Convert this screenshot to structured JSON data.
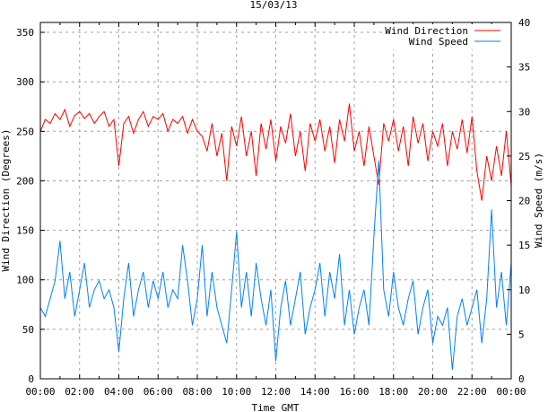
{
  "chart_data": {
    "type": "line",
    "title": "15/03/13",
    "xlabel": "Time GMT",
    "ylabel": "Wind Direction (Degrees)",
    "y2label": "Wind Speed (m/s)",
    "xlim": [
      0,
      24
    ],
    "ylim": [
      0,
      360
    ],
    "y2lim": [
      0,
      40
    ],
    "grid": true,
    "legend_position": "top-right",
    "x_tick_labels": [
      "00:00",
      "02:00",
      "04:00",
      "06:00",
      "08:00",
      "10:00",
      "12:00",
      "14:00",
      "16:00",
      "18:00",
      "20:00",
      "22:00",
      "00:00"
    ],
    "y_ticks": [
      0,
      50,
      100,
      150,
      200,
      250,
      300,
      350
    ],
    "y2_ticks": [
      0,
      5,
      10,
      15,
      20,
      25,
      30,
      35,
      40
    ],
    "series": [
      {
        "name": "Wind Direction",
        "axis": "left",
        "color": "#ff0000",
        "values": [
          250,
          262,
          258,
          268,
          262,
          272,
          255,
          266,
          270,
          263,
          268,
          258,
          265,
          270,
          255,
          262,
          215,
          258,
          265,
          248,
          262,
          270,
          255,
          265,
          262,
          268,
          250,
          262,
          258,
          265,
          248,
          262,
          250,
          245,
          230,
          258,
          225,
          248,
          200,
          255,
          235,
          265,
          225,
          250,
          205,
          258,
          232,
          262,
          220,
          255,
          238,
          268,
          225,
          250,
          210,
          258,
          240,
          262,
          230,
          255,
          218,
          262,
          240,
          278,
          230,
          250,
          215,
          255,
          225,
          196,
          258,
          240,
          262,
          230,
          255,
          215,
          265,
          238,
          258,
          220,
          250,
          235,
          258,
          215,
          250,
          232,
          262,
          228,
          265,
          210,
          180,
          225,
          200,
          235,
          205,
          250,
          195
        ]
      },
      {
        "name": "Wind Speed",
        "axis": "right",
        "color": "#0080ff",
        "values": [
          8,
          7,
          9,
          11,
          15.5,
          9,
          12,
          7,
          10,
          13,
          8,
          10,
          11,
          9,
          10,
          8,
          3,
          9,
          13,
          7,
          10,
          12,
          8,
          11,
          9,
          12,
          8,
          10,
          9,
          15,
          11,
          6,
          9,
          15,
          7,
          12,
          8,
          6,
          4,
          10,
          16.5,
          8,
          12,
          7,
          13,
          9,
          6,
          10,
          2,
          8,
          11,
          6,
          9,
          12,
          5,
          8,
          10,
          13,
          7,
          12,
          9,
          14,
          6,
          10,
          5,
          8,
          10,
          6,
          16,
          24.5,
          10,
          7,
          12,
          8,
          6,
          9,
          11,
          5,
          8,
          10,
          4,
          7,
          6,
          8,
          1,
          7,
          9,
          6,
          8,
          10,
          4,
          9,
          19,
          8,
          12,
          6,
          13
        ]
      }
    ]
  }
}
